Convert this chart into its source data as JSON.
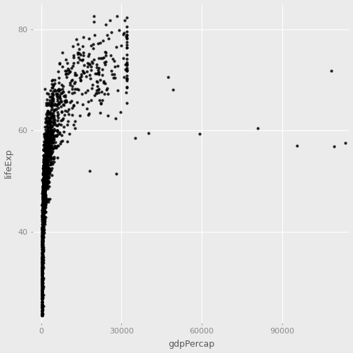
{
  "title": "",
  "xlabel": "gdpPercap",
  "ylabel": "lifeExp",
  "xlim": [
    -3000,
    115000
  ],
  "ylim": [
    22,
    85
  ],
  "xticks": [
    0,
    30000,
    60000,
    90000
  ],
  "yticks": [
    40,
    60,
    80
  ],
  "bg_color": "#EBEBEB",
  "grid_color": "#FFFFFF",
  "point_color": "#000000",
  "point_size": 9,
  "point_alpha": 0.85,
  "figsize": [
    5.04,
    5.04
  ],
  "dpi": 100
}
